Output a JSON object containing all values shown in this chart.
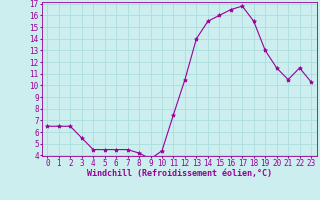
{
  "hours": [
    0,
    1,
    2,
    3,
    4,
    5,
    6,
    7,
    8,
    9,
    10,
    11,
    12,
    13,
    14,
    15,
    16,
    17,
    18,
    19,
    20,
    21,
    22,
    23
  ],
  "values": [
    6.5,
    6.5,
    6.5,
    5.5,
    4.5,
    4.5,
    4.5,
    4.5,
    4.2,
    3.7,
    4.4,
    7.5,
    10.5,
    14.0,
    15.5,
    16.0,
    16.5,
    16.8,
    15.5,
    13.0,
    11.5,
    10.5,
    11.5,
    10.3
  ],
  "line_color": "#990099",
  "marker": "*",
  "marker_size": 3,
  "background_color": "#cceeee",
  "grid_color": "#aadddd",
  "xlabel": "Windchill (Refroidissement éolien,°C)",
  "xlabel_color": "#990099",
  "tick_color": "#990099",
  "ylim": [
    4,
    17
  ],
  "yticks": [
    4,
    5,
    6,
    7,
    8,
    9,
    10,
    11,
    12,
    13,
    14,
    15,
    16,
    17
  ],
  "xlim": [
    -0.5,
    23.5
  ],
  "xticks": [
    0,
    1,
    2,
    3,
    4,
    5,
    6,
    7,
    8,
    9,
    10,
    11,
    12,
    13,
    14,
    15,
    16,
    17,
    18,
    19,
    20,
    21,
    22,
    23
  ],
  "axis_fontsize": 5.5,
  "tick_fontsize": 5.5,
  "xlabel_fontsize": 6.0
}
